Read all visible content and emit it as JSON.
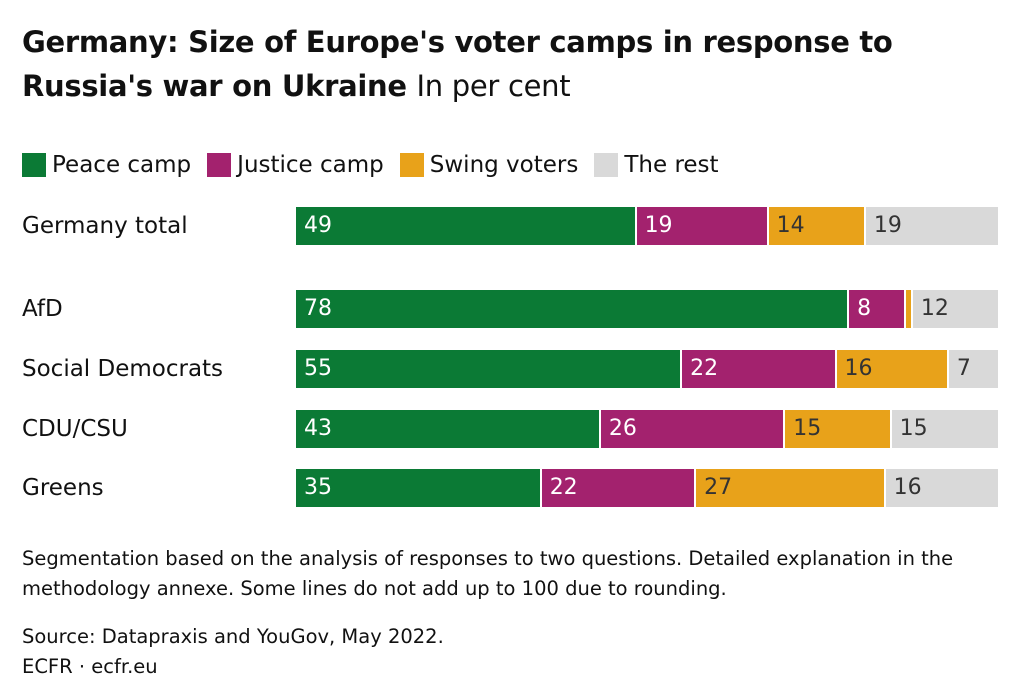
{
  "title_bold": "Germany: Size of Europe's voter camps in response to Russia's war on Ukraine",
  "title_unit": "In per cent",
  "note": "Segmentation based on the analysis of responses to two questions. Detailed explanation in the methodology annexe. Some lines do not add up to 100 due to rounding.",
  "source": "Source: Datapraxis and YouGov, May 2022.",
  "brand": "ECFR · ecfr.eu",
  "colors": {
    "peace": "#0b7a35",
    "justice": "#a3226e",
    "swing": "#e8a21a",
    "rest": "#d9d9d9"
  },
  "chart_data": {
    "type": "bar",
    "orientation": "horizontal",
    "stacked": true,
    "title": "Germany: Size of Europe's voter camps in response to Russia's war on Ukraine",
    "unit": "In per cent",
    "legend_position": "top-left",
    "categories": [
      "Germany total",
      "AfD",
      "Social Democrats",
      "CDU/CSU",
      "Greens"
    ],
    "series": [
      {
        "name": "Peace camp",
        "values": [
          49,
          78,
          55,
          43,
          35
        ]
      },
      {
        "name": "Justice camp",
        "values": [
          19,
          8,
          22,
          26,
          22
        ]
      },
      {
        "name": "Swing voters",
        "values": [
          14,
          1,
          16,
          15,
          27
        ]
      },
      {
        "name": "The rest",
        "values": [
          19,
          12,
          7,
          15,
          16
        ]
      }
    ],
    "labels": [
      [
        "49",
        "19",
        "14",
        "19"
      ],
      [
        "78",
        "8",
        "",
        "12"
      ],
      [
        "55",
        "22",
        "16",
        "7"
      ],
      [
        "43",
        "26",
        "15",
        "15"
      ],
      [
        "35",
        "22",
        "27",
        "16"
      ]
    ]
  }
}
